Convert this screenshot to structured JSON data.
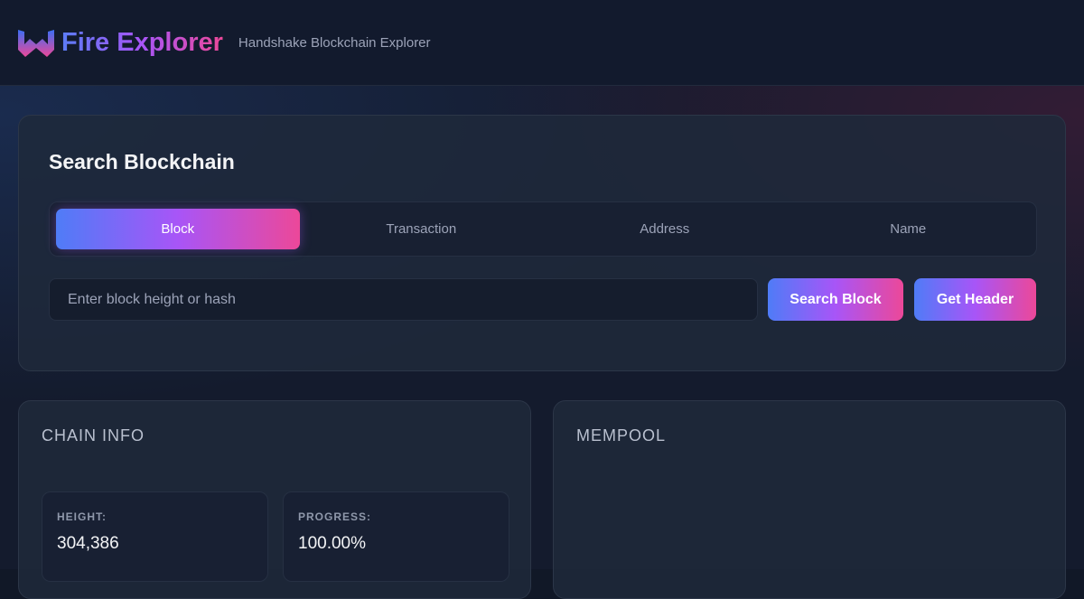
{
  "header": {
    "brand": "Fire Explorer",
    "subtitle": "Handshake Blockchain Explorer",
    "logo_icon": "w-logo-icon"
  },
  "search": {
    "title": "Search Blockchain",
    "tabs": [
      {
        "label": "Block",
        "active": true
      },
      {
        "label": "Transaction"
      },
      {
        "label": "Address"
      },
      {
        "label": "Name"
      }
    ],
    "placeholder": "Enter block height or hash",
    "search_button": "Search Block",
    "header_button": "Get Header"
  },
  "chain_info": {
    "title": "CHAIN INFO",
    "stats": [
      {
        "label": "HEIGHT:",
        "value": "304,386"
      },
      {
        "label": "PROGRESS:",
        "value": "100.00%"
      }
    ]
  },
  "mempool": {
    "title": "MEMPOOL"
  },
  "colors": {
    "accent_start": "#4f7cf7",
    "accent_mid": "#a855f7",
    "accent_end": "#ec4899"
  }
}
